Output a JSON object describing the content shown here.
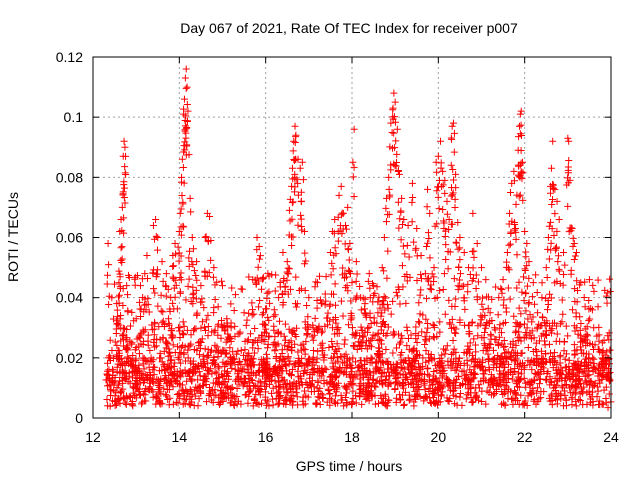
{
  "chart_data": {
    "type": "scatter",
    "title": "Day 067 of 2021, Rate Of TEC Index for receiver p007",
    "xlabel": "GPS time / hours",
    "ylabel": "ROTI / TECUs",
    "xlim": [
      12,
      24
    ],
    "ylim": [
      0,
      0.12
    ],
    "xticks": [
      "12",
      "14",
      "16",
      "18",
      "20",
      "22",
      "24"
    ],
    "yticks": [
      "0",
      "0.02",
      "0.04",
      "0.06",
      "0.08",
      "0.1",
      "0.12"
    ],
    "grid": true,
    "marker": "plus",
    "color": "#ff0000",
    "x_coverage": [
      12.3,
      24.0
    ],
    "points": [
      [
        12.35,
        0.058
      ],
      [
        12.4,
        0.02
      ],
      [
        12.45,
        0.012
      ],
      [
        12.55,
        0.038
      ],
      [
        12.6,
        0.045
      ],
      [
        12.62,
        0.062
      ],
      [
        12.65,
        0.066
      ],
      [
        12.68,
        0.07
      ],
      [
        12.7,
        0.087
      ],
      [
        12.72,
        0.092
      ],
      [
        12.74,
        0.09
      ],
      [
        12.78,
        0.044
      ],
      [
        12.8,
        0.041
      ],
      [
        12.9,
        0.025
      ],
      [
        13.0,
        0.033
      ],
      [
        13.1,
        0.044
      ],
      [
        13.2,
        0.048
      ],
      [
        13.25,
        0.054
      ],
      [
        13.4,
        0.064
      ],
      [
        13.45,
        0.066
      ],
      [
        13.5,
        0.06
      ],
      [
        13.6,
        0.052
      ],
      [
        13.7,
        0.048
      ],
      [
        13.75,
        0.033
      ],
      [
        13.8,
        0.04
      ],
      [
        13.85,
        0.054
      ],
      [
        13.9,
        0.058
      ],
      [
        14.0,
        0.062
      ],
      [
        14.02,
        0.068
      ],
      [
        14.05,
        0.08
      ],
      [
        14.07,
        0.086
      ],
      [
        14.1,
        0.101
      ],
      [
        14.12,
        0.106
      ],
      [
        14.14,
        0.113
      ],
      [
        14.16,
        0.116
      ],
      [
        14.18,
        0.11
      ],
      [
        14.2,
        0.102
      ],
      [
        14.25,
        0.073
      ],
      [
        14.3,
        0.06
      ],
      [
        14.35,
        0.049
      ],
      [
        14.4,
        0.052
      ],
      [
        14.5,
        0.044
      ],
      [
        14.6,
        0.06
      ],
      [
        14.65,
        0.068
      ],
      [
        14.7,
        0.067
      ],
      [
        14.8,
        0.05
      ],
      [
        14.9,
        0.037
      ],
      [
        15.0,
        0.044
      ],
      [
        15.1,
        0.033
      ],
      [
        15.2,
        0.03
      ],
      [
        15.3,
        0.041
      ],
      [
        15.4,
        0.028
      ],
      [
        15.5,
        0.035
      ],
      [
        15.6,
        0.026
      ],
      [
        15.7,
        0.046
      ],
      [
        15.8,
        0.06
      ],
      [
        15.85,
        0.057
      ],
      [
        15.95,
        0.035
      ],
      [
        16.05,
        0.048
      ],
      [
        16.2,
        0.036
      ],
      [
        16.3,
        0.04
      ],
      [
        16.4,
        0.055
      ],
      [
        16.5,
        0.052
      ],
      [
        16.55,
        0.069
      ],
      [
        16.6,
        0.077
      ],
      [
        16.62,
        0.083
      ],
      [
        16.65,
        0.092
      ],
      [
        16.68,
        0.097
      ],
      [
        16.7,
        0.094
      ],
      [
        16.75,
        0.086
      ],
      [
        16.8,
        0.083
      ],
      [
        16.85,
        0.085
      ],
      [
        16.9,
        0.062
      ],
      [
        17.0,
        0.04
      ],
      [
        17.1,
        0.03
      ],
      [
        17.2,
        0.045
      ],
      [
        17.3,
        0.038
      ],
      [
        17.4,
        0.047
      ],
      [
        17.5,
        0.055
      ],
      [
        17.55,
        0.062
      ],
      [
        17.6,
        0.066
      ],
      [
        17.7,
        0.074
      ],
      [
        17.75,
        0.077
      ],
      [
        17.8,
        0.068
      ],
      [
        17.85,
        0.064
      ],
      [
        17.9,
        0.07
      ],
      [
        17.95,
        0.058
      ],
      [
        18.0,
        0.045
      ],
      [
        18.05,
        0.096
      ],
      [
        18.1,
        0.052
      ],
      [
        18.2,
        0.04
      ],
      [
        18.3,
        0.038
      ],
      [
        18.4,
        0.048
      ],
      [
        18.5,
        0.044
      ],
      [
        18.6,
        0.035
      ],
      [
        18.7,
        0.05
      ],
      [
        18.75,
        0.06
      ],
      [
        18.8,
        0.073
      ],
      [
        18.85,
        0.08
      ],
      [
        18.9,
        0.098
      ],
      [
        18.95,
        0.103
      ],
      [
        18.97,
        0.108
      ],
      [
        19.0,
        0.105
      ],
      [
        19.05,
        0.096
      ],
      [
        19.1,
        0.081
      ],
      [
        19.15,
        0.073
      ],
      [
        19.2,
        0.066
      ],
      [
        19.3,
        0.064
      ],
      [
        19.4,
        0.078
      ],
      [
        19.5,
        0.063
      ],
      [
        19.6,
        0.054
      ],
      [
        19.7,
        0.048
      ],
      [
        19.75,
        0.076
      ],
      [
        19.8,
        0.068
      ],
      [
        19.9,
        0.05
      ],
      [
        19.95,
        0.085
      ],
      [
        20.0,
        0.087
      ],
      [
        20.05,
        0.092
      ],
      [
        20.1,
        0.082
      ],
      [
        20.15,
        0.079
      ],
      [
        20.2,
        0.072
      ],
      [
        20.25,
        0.066
      ],
      [
        20.3,
        0.084
      ],
      [
        20.32,
        0.097
      ],
      [
        20.35,
        0.098
      ],
      [
        20.4,
        0.081
      ],
      [
        20.45,
        0.065
      ],
      [
        20.5,
        0.06
      ],
      [
        20.6,
        0.055
      ],
      [
        20.7,
        0.05
      ],
      [
        20.8,
        0.068
      ],
      [
        20.9,
        0.058
      ],
      [
        21.0,
        0.05
      ],
      [
        21.1,
        0.046
      ],
      [
        21.2,
        0.035
      ],
      [
        21.3,
        0.03
      ],
      [
        21.4,
        0.04
      ],
      [
        21.5,
        0.046
      ],
      [
        21.6,
        0.055
      ],
      [
        21.65,
        0.068
      ],
      [
        21.7,
        0.078
      ],
      [
        21.75,
        0.082
      ],
      [
        21.8,
        0.071
      ],
      [
        21.85,
        0.089
      ],
      [
        21.88,
        0.097
      ],
      [
        21.9,
        0.101
      ],
      [
        21.92,
        0.102
      ],
      [
        21.95,
        0.085
      ],
      [
        22.0,
        0.062
      ],
      [
        22.05,
        0.058
      ],
      [
        22.1,
        0.052
      ],
      [
        22.2,
        0.045
      ],
      [
        22.3,
        0.035
      ],
      [
        22.4,
        0.04
      ],
      [
        22.5,
        0.05
      ],
      [
        22.55,
        0.06
      ],
      [
        22.6,
        0.077
      ],
      [
        22.62,
        0.083
      ],
      [
        22.65,
        0.092
      ],
      [
        22.7,
        0.076
      ],
      [
        22.75,
        0.072
      ],
      [
        22.8,
        0.066
      ],
      [
        22.9,
        0.055
      ],
      [
        23.0,
        0.093
      ],
      [
        23.02,
        0.092
      ],
      [
        23.05,
        0.079
      ],
      [
        23.1,
        0.063
      ],
      [
        23.15,
        0.058
      ],
      [
        23.2,
        0.055
      ],
      [
        23.3,
        0.045
      ],
      [
        23.4,
        0.037
      ],
      [
        23.5,
        0.046
      ],
      [
        23.6,
        0.03
      ],
      [
        23.7,
        0.037
      ],
      [
        23.8,
        0.025
      ],
      [
        23.9,
        0.022
      ],
      [
        23.95,
        0.026
      ]
    ]
  }
}
